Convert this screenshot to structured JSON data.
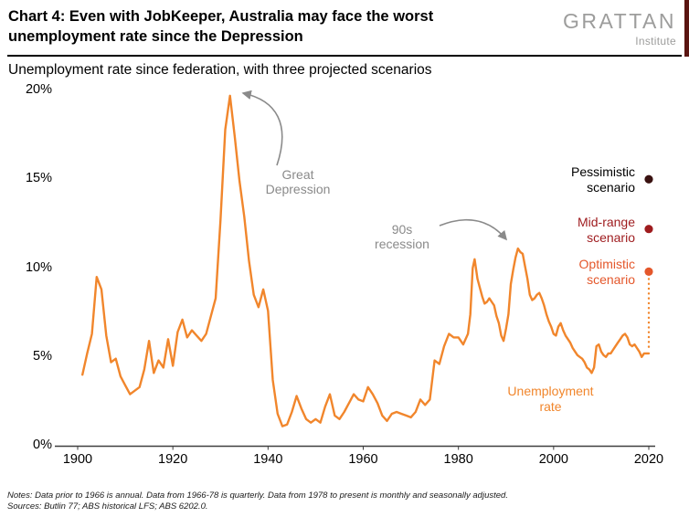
{
  "header": {
    "title_line1": "Chart 4: Even with JobKeeper, Australia may face the worst",
    "title_line2": "unemployment rate since the Depression",
    "logo": {
      "text": "GRATTAN",
      "subtext": "Institute"
    }
  },
  "subtitle": "Unemployment rate since federation, with three projected scenarios",
  "footer": {
    "notes": "Notes: Data prior to 1966 is annual. Data from 1966-78 is quarterly. Data from 1978 to present is monthly and seasonally adjusted.",
    "sources": "Sources: Butlin 77; ABS historical LFS; ABS 6202.0."
  },
  "colors": {
    "line_orange": "#f1862c",
    "annotation_gray": "#8a8a8a",
    "header_strip_maroon": "#5a1511",
    "logo_gray": "#9d9d9c"
  },
  "chart_data": {
    "type": "line",
    "title": "Chart 4: Even with JobKeeper, Australia may face the worst unemployment rate since the Depression",
    "subtitle": "Unemployment rate since federation, with three projected scenarios",
    "xlabel": "",
    "ylabel": "",
    "ylim": [
      0,
      20
    ],
    "xlim": [
      1900,
      2020
    ],
    "grid": false,
    "yticks": [
      "20%",
      "15%",
      "10%",
      "5%",
      "0%"
    ],
    "ytick_values": [
      20,
      15,
      10,
      5,
      0
    ],
    "xticks": [
      "1900",
      "1920",
      "1940",
      "1960",
      "1980",
      "2000",
      "2020"
    ],
    "xtick_values": [
      1900,
      1920,
      1940,
      1960,
      1980,
      2000,
      2020
    ],
    "series_label": "Unemployment rate",
    "annotations": [
      {
        "text": "Great Depression",
        "target_year": 1932,
        "target_value": 19.7
      },
      {
        "text": "90s recession",
        "target_year": 1992,
        "target_value": 11.1
      }
    ],
    "scenarios": [
      {
        "label": "Pessimistic scenario",
        "value": 15.0,
        "dot_color": "#391110",
        "text_color": "#000000"
      },
      {
        "label": "Mid-range scenario",
        "value": 12.2,
        "dot_color": "#9e1b1e",
        "text_color": "#9e1b1e"
      },
      {
        "label": "Optimistic scenario",
        "value": 9.8,
        "dot_color": "#e4572b",
        "text_color": "#e4572b"
      }
    ],
    "line": {
      "name": "Unemployment rate",
      "color": "#f1862c",
      "points": [
        [
          1901,
          4.0
        ],
        [
          1902,
          5.2
        ],
        [
          1903,
          6.3
        ],
        [
          1904,
          9.5
        ],
        [
          1905,
          8.8
        ],
        [
          1906,
          6.2
        ],
        [
          1907,
          4.7
        ],
        [
          1908,
          4.9
        ],
        [
          1909,
          3.9
        ],
        [
          1910,
          3.4
        ],
        [
          1911,
          2.9
        ],
        [
          1912,
          3.1
        ],
        [
          1913,
          3.3
        ],
        [
          1914,
          4.3
        ],
        [
          1915,
          5.9
        ],
        [
          1916,
          4.1
        ],
        [
          1917,
          4.8
        ],
        [
          1918,
          4.4
        ],
        [
          1919,
          6.0
        ],
        [
          1920,
          4.5
        ],
        [
          1921,
          6.4
        ],
        [
          1922,
          7.1
        ],
        [
          1923,
          6.1
        ],
        [
          1924,
          6.5
        ],
        [
          1925,
          6.2
        ],
        [
          1926,
          5.9
        ],
        [
          1927,
          6.3
        ],
        [
          1928,
          7.3
        ],
        [
          1929,
          8.3
        ],
        [
          1930,
          12.7
        ],
        [
          1931,
          17.8
        ],
        [
          1932,
          19.7
        ],
        [
          1933,
          17.4
        ],
        [
          1934,
          14.9
        ],
        [
          1935,
          12.9
        ],
        [
          1936,
          10.4
        ],
        [
          1937,
          8.5
        ],
        [
          1938,
          7.8
        ],
        [
          1939,
          8.8
        ],
        [
          1940,
          7.6
        ],
        [
          1941,
          3.7
        ],
        [
          1942,
          1.8
        ],
        [
          1943,
          1.1
        ],
        [
          1944,
          1.2
        ],
        [
          1945,
          1.9
        ],
        [
          1946,
          2.8
        ],
        [
          1947,
          2.1
        ],
        [
          1948,
          1.5
        ],
        [
          1949,
          1.3
        ],
        [
          1950,
          1.5
        ],
        [
          1951,
          1.3
        ],
        [
          1952,
          2.2
        ],
        [
          1953,
          2.9
        ],
        [
          1954,
          1.7
        ],
        [
          1955,
          1.5
        ],
        [
          1956,
          1.9
        ],
        [
          1957,
          2.4
        ],
        [
          1958,
          2.9
        ],
        [
          1959,
          2.6
        ],
        [
          1960,
          2.5
        ],
        [
          1961,
          3.3
        ],
        [
          1962,
          2.9
        ],
        [
          1963,
          2.4
        ],
        [
          1964,
          1.7
        ],
        [
          1965,
          1.4
        ],
        [
          1966,
          1.8
        ],
        [
          1967,
          1.9
        ],
        [
          1968,
          1.8
        ],
        [
          1969,
          1.7
        ],
        [
          1970,
          1.6
        ],
        [
          1971,
          1.9
        ],
        [
          1972,
          2.6
        ],
        [
          1973,
          2.3
        ],
        [
          1974,
          2.6
        ],
        [
          1975,
          4.8
        ],
        [
          1976,
          4.6
        ],
        [
          1977,
          5.6
        ],
        [
          1978,
          6.3
        ],
        [
          1979,
          6.1
        ],
        [
          1980,
          6.1
        ],
        [
          1981,
          5.7
        ],
        [
          1982,
          6.3
        ],
        [
          1982.5,
          7.4
        ],
        [
          1983,
          10.0
        ],
        [
          1983.4,
          10.5
        ],
        [
          1984,
          9.4
        ],
        [
          1984.5,
          8.9
        ],
        [
          1985,
          8.4
        ],
        [
          1985.5,
          8.0
        ],
        [
          1986,
          8.1
        ],
        [
          1986.5,
          8.3
        ],
        [
          1987,
          8.1
        ],
        [
          1987.5,
          7.9
        ],
        [
          1988,
          7.3
        ],
        [
          1988.5,
          6.9
        ],
        [
          1989,
          6.2
        ],
        [
          1989.5,
          5.9
        ],
        [
          1990,
          6.6
        ],
        [
          1990.5,
          7.4
        ],
        [
          1991,
          9.1
        ],
        [
          1991.5,
          9.9
        ],
        [
          1992,
          10.6
        ],
        [
          1992.5,
          11.1
        ],
        [
          1993,
          10.9
        ],
        [
          1993.5,
          10.8
        ],
        [
          1994,
          10.1
        ],
        [
          1994.5,
          9.4
        ],
        [
          1995,
          8.5
        ],
        [
          1995.5,
          8.2
        ],
        [
          1996,
          8.3
        ],
        [
          1996.5,
          8.5
        ],
        [
          1997,
          8.6
        ],
        [
          1997.5,
          8.3
        ],
        [
          1998,
          7.9
        ],
        [
          1998.5,
          7.4
        ],
        [
          1999,
          7.0
        ],
        [
          1999.5,
          6.7
        ],
        [
          2000,
          6.3
        ],
        [
          2000.5,
          6.2
        ],
        [
          2001,
          6.7
        ],
        [
          2001.5,
          6.9
        ],
        [
          2002,
          6.5
        ],
        [
          2002.5,
          6.2
        ],
        [
          2003,
          6.0
        ],
        [
          2003.5,
          5.8
        ],
        [
          2004,
          5.5
        ],
        [
          2004.5,
          5.3
        ],
        [
          2005,
          5.1
        ],
        [
          2005.5,
          5.0
        ],
        [
          2006,
          4.9
        ],
        [
          2006.5,
          4.7
        ],
        [
          2007,
          4.4
        ],
        [
          2007.5,
          4.3
        ],
        [
          2008,
          4.1
        ],
        [
          2008.5,
          4.4
        ],
        [
          2009,
          5.6
        ],
        [
          2009.5,
          5.7
        ],
        [
          2010,
          5.3
        ],
        [
          2010.5,
          5.1
        ],
        [
          2011,
          5.0
        ],
        [
          2011.5,
          5.2
        ],
        [
          2012,
          5.2
        ],
        [
          2012.5,
          5.4
        ],
        [
          2013,
          5.6
        ],
        [
          2013.5,
          5.8
        ],
        [
          2014,
          6.0
        ],
        [
          2014.5,
          6.2
        ],
        [
          2015,
          6.3
        ],
        [
          2015.5,
          6.1
        ],
        [
          2016,
          5.7
        ],
        [
          2016.5,
          5.6
        ],
        [
          2017,
          5.7
        ],
        [
          2017.5,
          5.5
        ],
        [
          2018,
          5.3
        ],
        [
          2018.5,
          5.0
        ],
        [
          2019,
          5.2
        ],
        [
          2019.5,
          5.2
        ],
        [
          2020,
          5.2
        ]
      ]
    }
  }
}
